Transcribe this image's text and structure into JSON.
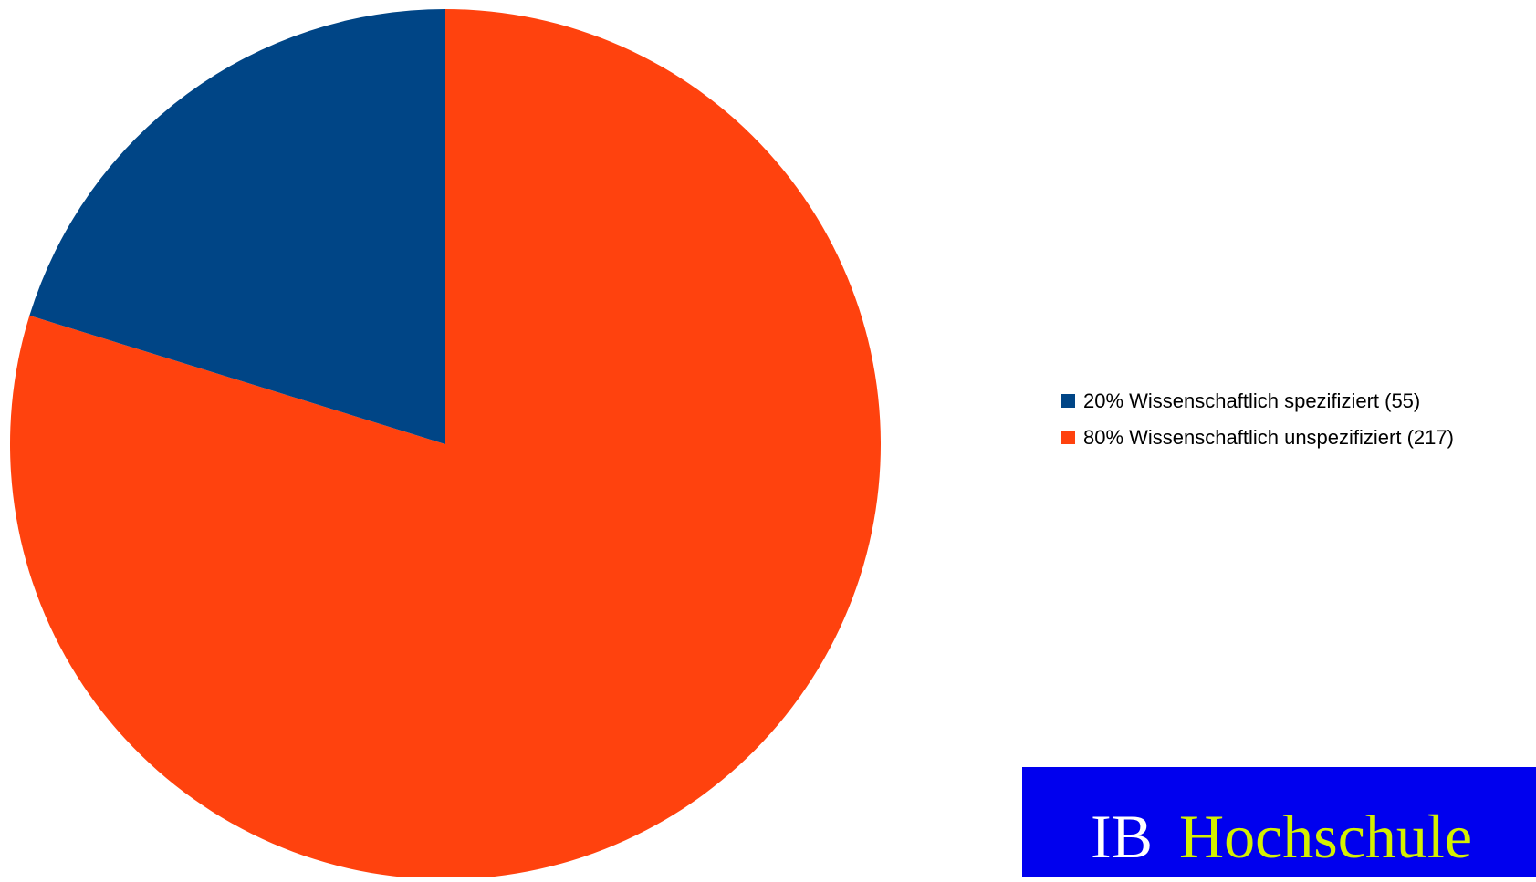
{
  "chart_data": {
    "type": "pie",
    "title": "",
    "start_angle": "12 o'clock, clockwise",
    "legend_position": "right",
    "slices": [
      {
        "label": "20% Wissenschaftlich spezifiziert (55)",
        "value": 55,
        "percent": 20,
        "color": "#004586"
      },
      {
        "label": "80% Wissenschaftlich unspezifiziert (217)",
        "value": 217,
        "percent": 80,
        "color": "#ff420e"
      }
    ]
  },
  "logo": {
    "prefix": "IB",
    "name": "Hochschule",
    "background": "#0000ee",
    "prefix_color": "#ffffff",
    "name_color": "#d4f000"
  }
}
